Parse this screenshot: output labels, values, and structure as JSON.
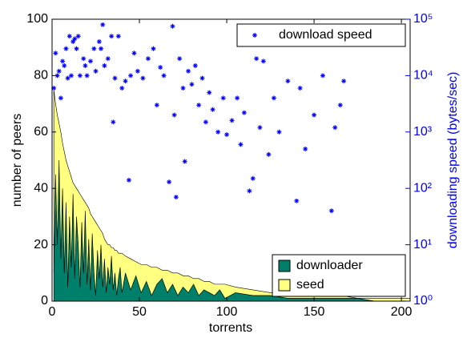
{
  "chart_data": {
    "type": "area",
    "x_label": "torrents",
    "y_label": "number of peers",
    "y2_label": "downloading speed (bytes/sec)",
    "xlim": [
      0,
      205
    ],
    "xticks": [
      0,
      50,
      100,
      150,
      200
    ],
    "ylim": [
      0,
      100
    ],
    "yticks": [
      0,
      20,
      40,
      60,
      80,
      100
    ],
    "y2lim": [
      1,
      100000
    ],
    "y2_log": true,
    "y2ticks": [
      {
        "value": 1,
        "label": "10⁰"
      },
      {
        "value": 10,
        "label": "10¹"
      },
      {
        "value": 100,
        "label": "10²"
      },
      {
        "value": 1000,
        "label": "10³"
      },
      {
        "value": 10000,
        "label": "10⁴"
      },
      {
        "value": 100000,
        "label": "10⁵"
      }
    ],
    "x": [
      1,
      2,
      3,
      4,
      5,
      6,
      7,
      8,
      9,
      10,
      11,
      12,
      13,
      14,
      15,
      16,
      17,
      18,
      19,
      20,
      21,
      22,
      23,
      24,
      25,
      26,
      27,
      28,
      29,
      30,
      31,
      32,
      33,
      34,
      35,
      36,
      37,
      38,
      39,
      40,
      42,
      45,
      48,
      51,
      54,
      57,
      60,
      63,
      66,
      69,
      72,
      75,
      78,
      81,
      84,
      87,
      90,
      93,
      96,
      99,
      105,
      115,
      125,
      135,
      145,
      155,
      165,
      175,
      185,
      195,
      205
    ],
    "series": [
      {
        "name": "downloader",
        "type": "area",
        "color": "#00806a",
        "legend": "lower right",
        "values": [
          10,
          45,
          20,
          50,
          15,
          40,
          10,
          35,
          5,
          30,
          12,
          38,
          8,
          30,
          20,
          5,
          28,
          10,
          32,
          6,
          22,
          4,
          24,
          10,
          2,
          18,
          8,
          20,
          5,
          15,
          3,
          12,
          6,
          16,
          4,
          10,
          2,
          8,
          12,
          3,
          10,
          4,
          9,
          3,
          7,
          2,
          6,
          8,
          3,
          6,
          2,
          5,
          3,
          6,
          2,
          4,
          3,
          2,
          4,
          1,
          3,
          2,
          2,
          1,
          1,
          1,
          1,
          1,
          0,
          0,
          0
        ]
      },
      {
        "name": "seed",
        "type": "area",
        "color": "#ffff80",
        "legend": "lower right",
        "values": [
          65,
          25,
          46,
          13,
          45,
          16,
          43,
          15,
          43,
          16,
          32,
          4,
          33,
          10,
          19,
          33,
          9,
          26,
          3,
          28,
          11,
          27,
          6,
          19,
          26,
          9,
          18,
          5,
          19,
          7,
          18,
          8,
          14,
          3,
          15,
          8,
          16,
          9,
          5,
          14,
          6,
          11,
          5,
          10,
          6,
          10,
          6,
          3,
          8,
          4,
          8,
          4,
          6,
          2,
          6,
          3,
          4,
          4,
          2,
          5,
          2,
          2,
          1,
          2,
          1,
          1,
          1,
          0,
          1,
          1,
          1
        ]
      },
      {
        "name": "download speed",
        "type": "scatter",
        "axis": "y2",
        "color": "#0000ff",
        "legend": "upper right",
        "x": [
          1,
          2,
          3,
          4,
          5,
          6,
          7,
          8,
          9,
          10,
          11,
          12,
          13,
          14,
          15,
          16,
          18,
          19,
          20,
          22,
          24,
          25,
          27,
          28,
          29,
          30,
          32,
          34,
          35,
          36,
          38,
          40,
          42,
          44,
          45,
          47,
          49,
          52,
          55,
          58,
          60,
          62,
          64,
          67,
          69,
          70,
          71,
          73,
          75,
          76,
          78,
          80,
          82,
          84,
          86,
          88,
          90,
          92,
          95,
          98,
          100,
          103,
          106,
          108,
          110,
          113,
          115,
          117,
          119,
          121,
          124,
          127,
          130,
          133,
          135,
          140,
          142,
          145,
          150,
          155,
          160,
          162,
          165,
          167
        ],
        "values": [
          6000,
          25000,
          10000,
          12000,
          4000,
          18000,
          15000,
          30000,
          9000,
          50000,
          10000,
          40000,
          45000,
          30000,
          50000,
          10000,
          20000,
          15000,
          10000,
          18000,
          30000,
          12000,
          40000,
          30000,
          80000,
          15000,
          20000,
          50000,
          1500,
          9000,
          50000,
          6000,
          8000,
          140,
          10000,
          25000,
          12000,
          9000,
          20000,
          30000,
          3000,
          14000,
          10000,
          130,
          75000,
          2000,
          70,
          20000,
          6000,
          300,
          12000,
          7000,
          15000,
          3000,
          9000,
          1500,
          5000,
          2500,
          1000,
          4000,
          900,
          1600,
          4000,
          600,
          2200,
          90,
          150,
          20000,
          1200,
          18000,
          400,
          4000,
          1000,
          50000,
          8000,
          60,
          6000,
          500,
          2000,
          10000,
          40,
          1200,
          3000,
          8000
        ]
      }
    ]
  }
}
